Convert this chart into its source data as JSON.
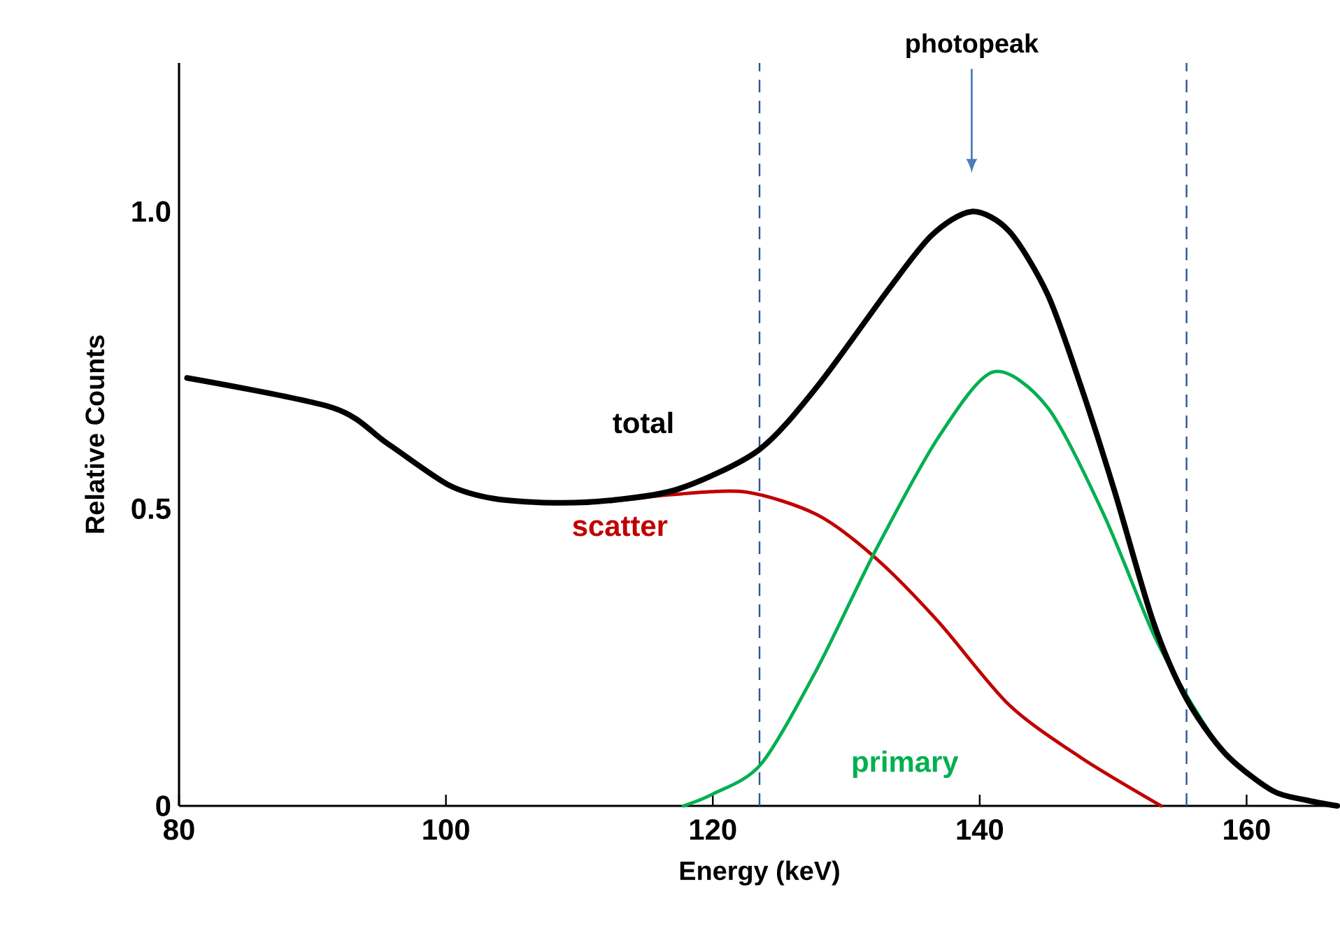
{
  "chart_data": {
    "type": "line",
    "xlabel": "Energy (keV)",
    "ylabel": "Relative Counts",
    "xlim": [
      80,
      167
    ],
    "ylim": [
      0,
      1.25
    ],
    "xticks": [
      80,
      100,
      120,
      140,
      160
    ],
    "yticks": [
      0,
      0.5,
      {
        "value": 1,
        "label": "1.0"
      }
    ],
    "grid": false,
    "legend": false,
    "line_style": "solid",
    "ref_lines": [
      {
        "axis": "x",
        "value": 123.5,
        "color": "#2f5597",
        "line_style": "dashed"
      },
      {
        "axis": "x",
        "value": 155.5,
        "color": "#2f5597",
        "line_style": "dashed"
      }
    ],
    "annotations": [
      "photopeak"
    ],
    "series": [
      {
        "name": "scatter",
        "color": "#c00000",
        "x": [
          112.3,
          117.1,
          122.5,
          127.8,
          132.2,
          136.9,
          142.2,
          147.6,
          153.6
        ],
        "values": [
          0.512,
          0.524,
          0.528,
          0.49,
          0.417,
          0.31,
          0.17,
          0.081,
          0
        ]
      },
      {
        "name": "primary",
        "color": "#00b050",
        "x": [
          117.8,
          120.0,
          123.6,
          127.8,
          132.2,
          136.9,
          141.0,
          145.1,
          149.3,
          153.0,
          155.5,
          158.4,
          161.9,
          166.8
        ],
        "values": [
          0,
          0.02,
          0.07,
          0.23,
          0.43,
          0.62,
          0.73,
          0.67,
          0.49,
          0.29,
          0.186,
          0.088,
          0.026,
          0
        ]
      },
      {
        "name": "total",
        "color": "#000000",
        "x": [
          80.6,
          91.5,
          95.6,
          100.2,
          103.6,
          108.1,
          112.3,
          117.4,
          123.4,
          127.8,
          133.2,
          136.4,
          139.4,
          142.2,
          145.1,
          147.6,
          150.1,
          153.0,
          155.5,
          158.4,
          161.9,
          164.4,
          166.8
        ],
        "values": [
          0.72,
          0.67,
          0.61,
          0.54,
          0.517,
          0.51,
          0.514,
          0.533,
          0.598,
          0.705,
          0.87,
          0.96,
          1.0,
          0.967,
          0.86,
          0.705,
          0.53,
          0.31,
          0.18,
          0.088,
          0.026,
          0.01,
          0
        ]
      }
    ]
  }
}
